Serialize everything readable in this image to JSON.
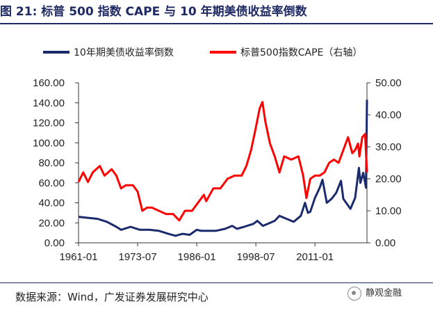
{
  "figure": {
    "title": "图 21: 标普 500 指数 CAPE 与 10 年期美债收益率倒数",
    "source": "数据来源：Wind，广发证券发展研究中心",
    "watermark": "静观金融"
  },
  "chart_data": {
    "type": "line",
    "x_tick_labels": [
      "1961-01",
      "1973-07",
      "1986-01",
      "1998-07",
      "2011-01"
    ],
    "x_range": [
      1961.0,
      2022.0
    ],
    "left_axis": {
      "ylim": [
        0,
        160
      ],
      "ticks": [
        "0.00",
        "20.00",
        "40.00",
        "60.00",
        "80.00",
        "100.00",
        "120.00",
        "140.00",
        "160.00"
      ]
    },
    "right_axis": {
      "ylim": [
        0,
        50
      ],
      "ticks": [
        "0.00",
        "10.00",
        "20.00",
        "30.00",
        "40.00",
        "50.00"
      ]
    },
    "legend_position": "top",
    "series": [
      {
        "name": "10年期美债收益率倒数",
        "axis": "left",
        "color": "#1a2a6c",
        "x": [
          1961,
          1963,
          1965,
          1967,
          1969,
          1970,
          1972,
          1974,
          1976,
          1978,
          1980,
          1981.5,
          1983,
          1984.5,
          1986,
          1987,
          1988,
          1990,
          1992,
          1993.5,
          1994.5,
          1996,
          1998,
          1998.8,
          2000,
          2001,
          2002.5,
          2003.5,
          2005,
          2006.5,
          2008,
          2008.9,
          2009.5,
          2010,
          2011,
          2012,
          2012.6,
          2013.5,
          2014.5,
          2015.5,
          2016.5,
          2017,
          2018.5,
          2019.5,
          2020.3,
          2020.6,
          2021.2,
          2021.8,
          2022.0
        ],
        "y": [
          26,
          25,
          24,
          21,
          16,
          13,
          16,
          13,
          13,
          12,
          9,
          7,
          9,
          8,
          13,
          12,
          12,
          12,
          14,
          17,
          14,
          16,
          19,
          22,
          17,
          19,
          22,
          27,
          24,
          21,
          27,
          40,
          30,
          31,
          45,
          55,
          63,
          40,
          44,
          50,
          62,
          44,
          34,
          45,
          75,
          60,
          70,
          55,
          143
        ]
      },
      {
        "name": "标普500指数CAPE（右轴）",
        "axis": "right",
        "color": "#ff0000",
        "x": [
          1961,
          1962,
          1963,
          1964,
          1965.5,
          1966.5,
          1968,
          1969,
          1970,
          1971,
          1972.5,
          1973.5,
          1974.5,
          1975.5,
          1976.5,
          1978,
          1979.5,
          1981,
          1982.3,
          1983.5,
          1985,
          1986.5,
          1987.5,
          1988,
          1989.5,
          1991,
          1992.5,
          1994,
          1995.5,
          1996.5,
          1997.5,
          1998.5,
          1999.3,
          1999.9,
          2000.5,
          2001.5,
          2002.5,
          2003.5,
          2004.5,
          2006,
          2007.5,
          2008.5,
          2009.2,
          2010,
          2011,
          2012,
          2013,
          2014,
          2015,
          2016,
          2017,
          2018,
          2018.9,
          2019.5,
          2020.1,
          2020.4,
          2021,
          2021.6,
          2022.0
        ],
        "y": [
          19,
          22,
          19,
          22,
          24,
          21,
          23,
          21,
          17,
          18,
          18,
          16,
          10,
          11,
          11,
          10,
          9,
          9,
          7,
          10,
          10,
          13,
          15,
          13,
          17,
          17,
          20,
          21,
          21,
          24,
          29,
          36,
          42,
          44,
          38,
          31,
          27,
          22,
          27,
          26,
          27,
          21,
          14,
          20,
          21,
          21,
          22,
          25,
          26,
          25,
          29,
          33,
          28,
          29,
          31,
          27,
          33,
          34,
          22
        ]
      }
    ]
  }
}
